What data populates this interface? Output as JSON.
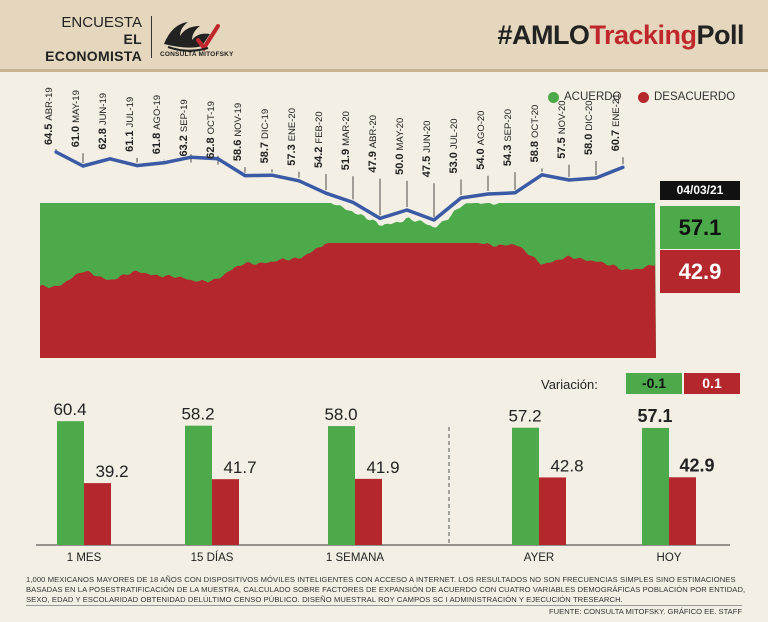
{
  "header": {
    "encuesta": "ENCUESTA",
    "medio": "EL ECONOMISTA",
    "logo_icon": "consulta-mitofsky-logo",
    "logo_text": "CONSULTA MITOFSKY",
    "hashtag_a": "#AMLO",
    "hashtag_b": "Tracking",
    "hashtag_c": "Poll"
  },
  "colors": {
    "acuerdo": "#4caa4b",
    "desacuerdo": "#b4272c",
    "line": "#3a5aa5"
  },
  "legend": {
    "acuerdo": "ACUERDO",
    "desacuerdo": "DESACUERDO"
  },
  "current": {
    "date": "04/03/21",
    "acuerdo": "57.1",
    "desacuerdo": "42.9"
  },
  "variacion": {
    "label": "Variación:",
    "acuerdo": "-0.1",
    "desacuerdo": "0.1"
  },
  "chart_data": [
    {
      "type": "line",
      "title": "#AMLOTrackingPoll",
      "series_name": "ACUERDO",
      "ylim": [
        40,
        70
      ],
      "points": [
        {
          "label": "ABR-19",
          "value": 64.5
        },
        {
          "label": "MAY-19",
          "value": 61.0
        },
        {
          "label": "JUN-19",
          "value": 62.8
        },
        {
          "label": "JUL-19",
          "value": 61.1
        },
        {
          "label": "AGO-19",
          "value": 61.8
        },
        {
          "label": "SEP-19",
          "value": 63.2
        },
        {
          "label": "OCT-19",
          "value": 62.8
        },
        {
          "label": "NOV-19",
          "value": 58.6
        },
        {
          "label": "DIC-19",
          "value": 58.7
        },
        {
          "label": "ENE-20",
          "value": 57.3
        },
        {
          "label": "FEB-20",
          "value": 54.2
        },
        {
          "label": "MAR-20",
          "value": 51.9
        },
        {
          "label": "ABR-20",
          "value": 47.9
        },
        {
          "label": "MAY-20",
          "value": 50.0
        },
        {
          "label": "JUN-20",
          "value": 47.5
        },
        {
          "label": "JUL-20",
          "value": 53.0
        },
        {
          "label": "AGO-20",
          "value": 54.0
        },
        {
          "label": "SEP-20",
          "value": 54.3
        },
        {
          "label": "OCT-20",
          "value": 58.8
        },
        {
          "label": "NOV-20",
          "value": 57.5
        },
        {
          "label": "DIC-20",
          "value": 58.0
        },
        {
          "label": "ENE-21",
          "value": 60.7
        }
      ],
      "area_series": [
        "ACUERDO",
        "DESACUERDO"
      ]
    },
    {
      "type": "bar",
      "categories": [
        "1 MES",
        "15 DÍAS",
        "1 SEMANA",
        "AYER",
        "HOY"
      ],
      "series": [
        {
          "name": "ACUERDO",
          "values": [
            60.4,
            58.2,
            58.0,
            57.2,
            57.1
          ],
          "labels": [
            "60.4",
            "58.2",
            "58.0",
            "57.2",
            "57.1"
          ]
        },
        {
          "name": "DESACUERDO",
          "values": [
            39.2,
            41.7,
            41.9,
            42.8,
            42.9
          ],
          "labels": [
            "39.2",
            "41.7",
            "41.9",
            "42.8",
            "42.9"
          ]
        }
      ],
      "ylim": [
        0,
        70
      ]
    }
  ],
  "footnote": "1,000 MEXICANOS MAYORES DE 18 AÑOS CON DISPOSITIVOS MÓVILES INTELIGENTES CON ACCESO A INTERNET. LOS RESULTADOS NO SON FRECUENCIAS SIMPLES SINO ESTIMACIONES BASADAS EN LA POSESTRATIFICACIÓN DE LA MUESTRA, CALCULADO SOBRE FACTORES DE EXPANSIÓN DE ACUERDO CON CUATRO VARIABLES DEMOGRÁFICAS POBLACIÓN POR ENTIDAD, SEXO, EDAD Y ESCOLARIDAD OBTENIDAD DELÚLTIMO CENSO PÚBLICO. DISEÑO MUESTRAL ROY CAMPOS SC I ADMINISTRACIÓN Y EJECUCIÓN TRESEARCH.",
  "source": "FUENTE: CONSULTA MITOFSKY. GRÁFICO EE. STAFF"
}
